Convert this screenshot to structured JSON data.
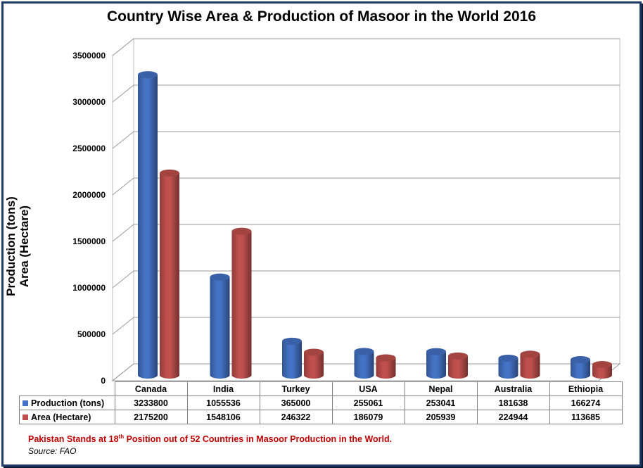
{
  "chart_data": {
    "type": "bar",
    "title": "Country Wise Area & Production of Masoor in the World 2016",
    "ylabel_line1": "Production (tons)",
    "ylabel_line2": "Area (Hectare)",
    "ylim": [
      0,
      3500000
    ],
    "yticks": [
      "0",
      "500000",
      "1000000",
      "1500000",
      "2000000",
      "2500000",
      "3000000",
      "3500000"
    ],
    "categories": [
      "Canada",
      "India",
      "Turkey",
      "USA",
      "Nepal",
      "Australia",
      "Ethiopia"
    ],
    "series": [
      {
        "name": "Production (tons)",
        "color": "#4472c4",
        "values": [
          3233800,
          1055536,
          365000,
          255061,
          253041,
          181638,
          166274
        ]
      },
      {
        "name": "Area (Hectare)",
        "color": "#c0504d",
        "values": [
          2175200,
          1548106,
          246322,
          186079,
          205939,
          224944,
          113685
        ]
      }
    ],
    "grid": true
  },
  "note": {
    "before": "Pakistan Stands at 18",
    "sup": "th",
    "after": " Position out of 52 Countries in Masoor Production in the World."
  },
  "source": "Source: FAO"
}
